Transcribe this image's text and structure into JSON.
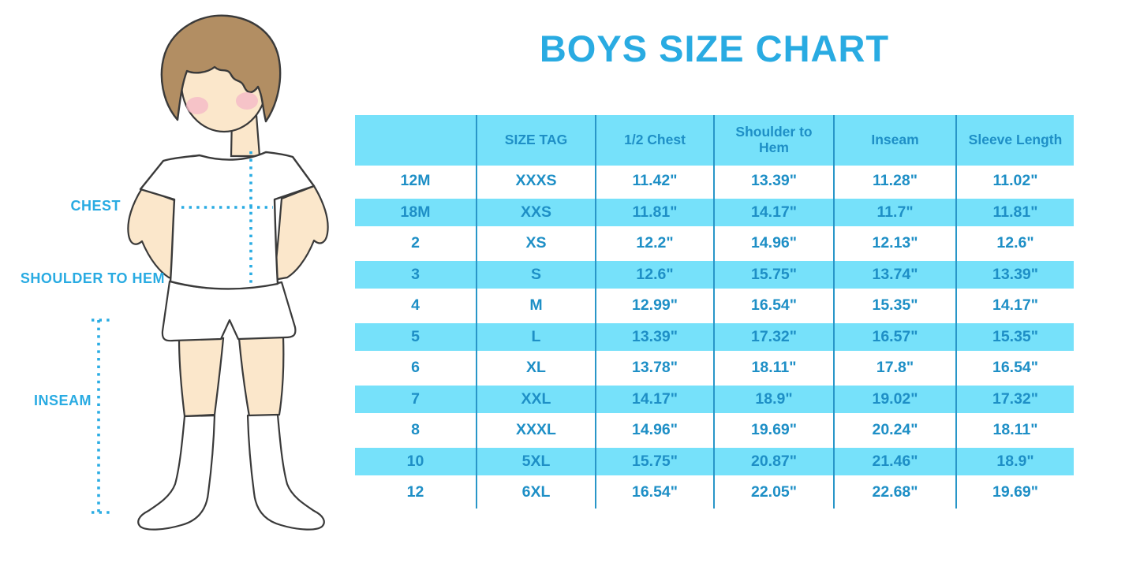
{
  "title": "BOYS SIZE CHART",
  "colors": {
    "accent_blue": "#29ABE2",
    "stripe_blue": "#76E1FA",
    "table_text_blue": "#1E8FC6",
    "divider_blue": "#2996C8",
    "skin": "#FBE7CB",
    "hair_brown": "#B28E63",
    "blush_pink": "#F5BAC7",
    "outline": "#3A3A3A"
  },
  "figure": {
    "labels": {
      "chest": "CHEST",
      "shoulder_to_hem": "SHOULDER TO HEM",
      "inseam": "INSEAM"
    }
  },
  "chart_data": {
    "type": "table",
    "title": "BOYS SIZE CHART",
    "columns": [
      "",
      "SIZE TAG",
      "1/2 Chest",
      "Shoulder to Hem",
      "Inseam",
      "Sleeve Length"
    ],
    "rows": [
      [
        "12M",
        "XXXS",
        "11.42\"",
        "13.39\"",
        "11.28\"",
        "11.02\""
      ],
      [
        "18M",
        "XXS",
        "11.81\"",
        "14.17\"",
        "11.7\"",
        "11.81\""
      ],
      [
        "2",
        "XS",
        "12.2\"",
        "14.96\"",
        "12.13\"",
        "12.6\""
      ],
      [
        "3",
        "S",
        "12.6\"",
        "15.75\"",
        "13.74\"",
        "13.39\""
      ],
      [
        "4",
        "M",
        "12.99\"",
        "16.54\"",
        "15.35\"",
        "14.17\""
      ],
      [
        "5",
        "L",
        "13.39\"",
        "17.32\"",
        "16.57\"",
        "15.35\""
      ],
      [
        "6",
        "XL",
        "13.78\"",
        "18.11\"",
        "17.8\"",
        "16.54\""
      ],
      [
        "7",
        "XXL",
        "14.17\"",
        "18.9\"",
        "19.02\"",
        "17.32\""
      ],
      [
        "8",
        "XXXL",
        "14.96\"",
        "19.69\"",
        "20.24\"",
        "18.11\""
      ],
      [
        "10",
        "5XL",
        "15.75\"",
        "20.87\"",
        "21.46\"",
        "18.9\""
      ],
      [
        "12",
        "6XL",
        "16.54\"",
        "22.05\"",
        "22.68\"",
        "19.69\""
      ]
    ]
  }
}
